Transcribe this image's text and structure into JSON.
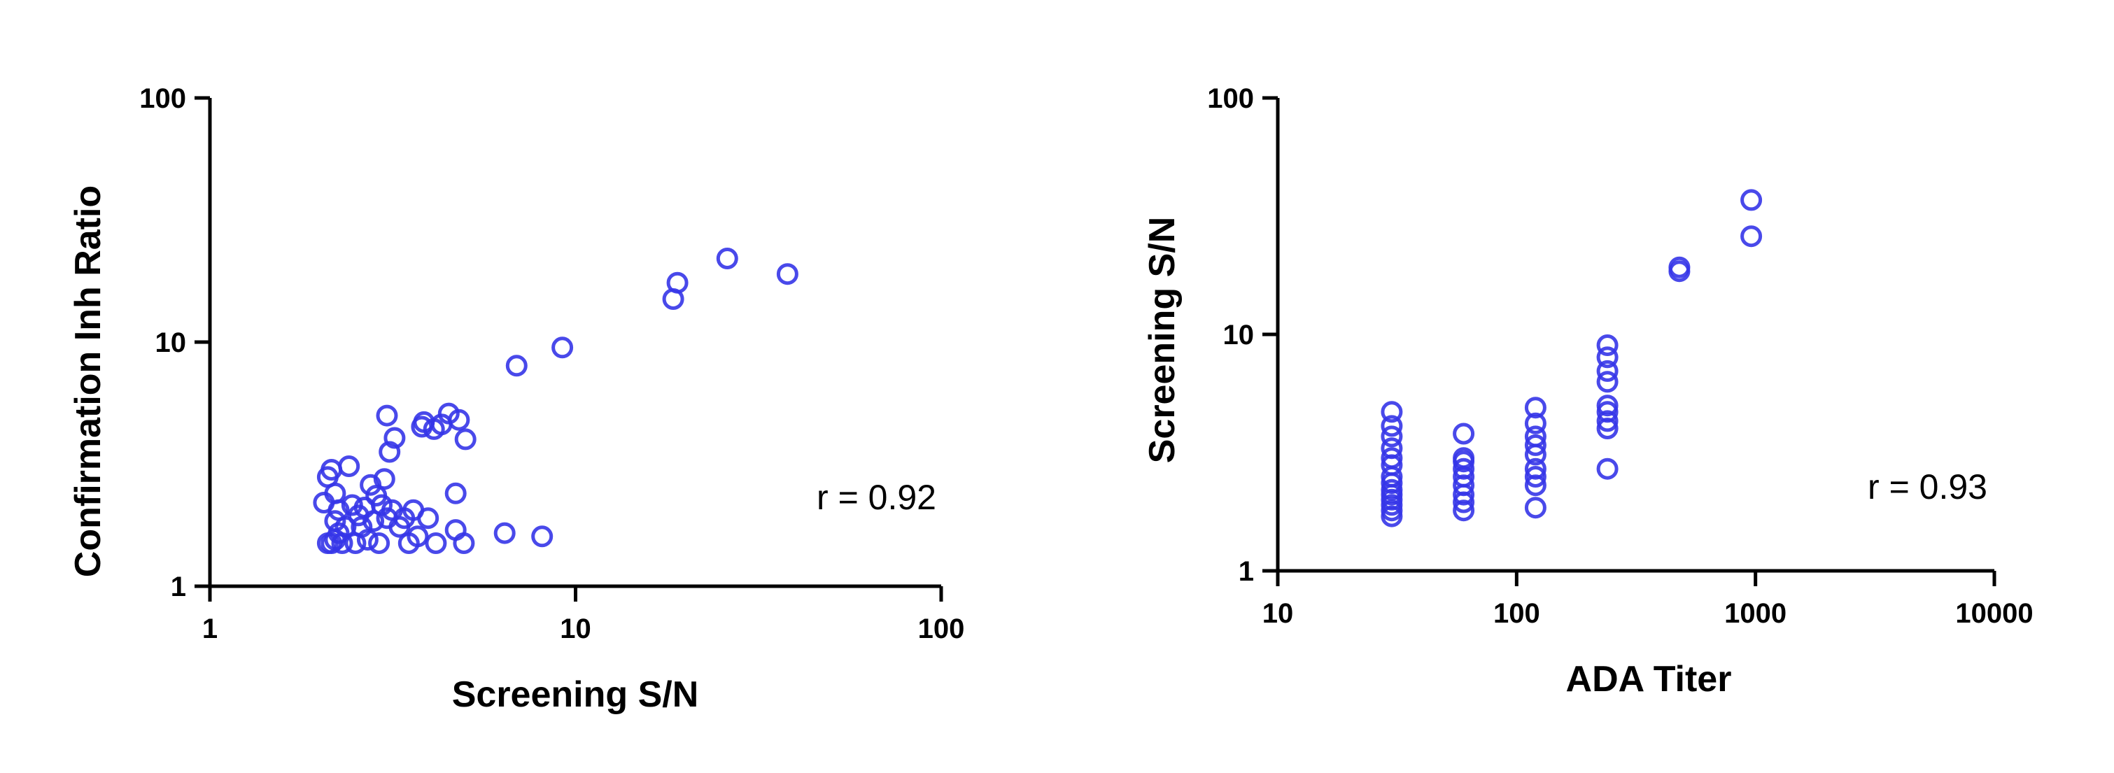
{
  "chart_data": [
    {
      "type": "scatter",
      "xlabel": "Screening S/N",
      "ylabel": "Confirmation Inh Ratio",
      "xscale": "log",
      "yscale": "log",
      "xlim": [
        1,
        100
      ],
      "ylim": [
        1,
        100
      ],
      "xticks": [
        "1",
        "10",
        "100"
      ],
      "yticks": [
        "1",
        "10",
        "100"
      ],
      "grid": false,
      "marker": "open-circle",
      "color": "#3535E8",
      "annotation": "r = 0.92",
      "points": [
        {
          "x": 2.05,
          "y": 2.2
        },
        {
          "x": 2.1,
          "y": 2.8
        },
        {
          "x": 2.15,
          "y": 3.0
        },
        {
          "x": 2.2,
          "y": 2.4
        },
        {
          "x": 2.1,
          "y": 1.5
        },
        {
          "x": 2.15,
          "y": 1.5
        },
        {
          "x": 2.2,
          "y": 1.55
        },
        {
          "x": 2.25,
          "y": 1.65
        },
        {
          "x": 2.3,
          "y": 1.5
        },
        {
          "x": 2.35,
          "y": 1.75
        },
        {
          "x": 2.2,
          "y": 1.85
        },
        {
          "x": 2.25,
          "y": 2.05
        },
        {
          "x": 2.4,
          "y": 3.1
        },
        {
          "x": 2.45,
          "y": 2.15
        },
        {
          "x": 2.5,
          "y": 1.5
        },
        {
          "x": 2.55,
          "y": 1.95
        },
        {
          "x": 2.6,
          "y": 1.75
        },
        {
          "x": 2.65,
          "y": 2.1
        },
        {
          "x": 2.7,
          "y": 1.55
        },
        {
          "x": 2.75,
          "y": 2.6
        },
        {
          "x": 2.8,
          "y": 1.85
        },
        {
          "x": 2.85,
          "y": 2.35
        },
        {
          "x": 2.9,
          "y": 1.5
        },
        {
          "x": 2.95,
          "y": 2.15
        },
        {
          "x": 3.0,
          "y": 2.75
        },
        {
          "x": 3.05,
          "y": 1.9
        },
        {
          "x": 3.05,
          "y": 5.0
        },
        {
          "x": 3.1,
          "y": 3.55
        },
        {
          "x": 3.15,
          "y": 2.05
        },
        {
          "x": 3.2,
          "y": 4.05
        },
        {
          "x": 3.3,
          "y": 1.75
        },
        {
          "x": 3.4,
          "y": 1.9
        },
        {
          "x": 3.5,
          "y": 1.5
        },
        {
          "x": 3.6,
          "y": 2.05
        },
        {
          "x": 3.7,
          "y": 1.6
        },
        {
          "x": 3.8,
          "y": 4.5
        },
        {
          "x": 3.85,
          "y": 4.7
        },
        {
          "x": 3.95,
          "y": 1.9
        },
        {
          "x": 4.1,
          "y": 4.4
        },
        {
          "x": 4.15,
          "y": 1.5
        },
        {
          "x": 4.3,
          "y": 4.6
        },
        {
          "x": 4.5,
          "y": 5.1
        },
        {
          "x": 4.7,
          "y": 2.4
        },
        {
          "x": 4.7,
          "y": 1.7
        },
        {
          "x": 4.8,
          "y": 4.8
        },
        {
          "x": 4.95,
          "y": 1.5
        },
        {
          "x": 5.0,
          "y": 4.0
        },
        {
          "x": 6.4,
          "y": 1.65
        },
        {
          "x": 6.9,
          "y": 8.0
        },
        {
          "x": 8.1,
          "y": 1.6
        },
        {
          "x": 9.2,
          "y": 9.5
        },
        {
          "x": 18.5,
          "y": 15.0
        },
        {
          "x": 19.0,
          "y": 17.5
        },
        {
          "x": 26.0,
          "y": 22.0
        },
        {
          "x": 38.0,
          "y": 19.0
        }
      ]
    },
    {
      "type": "scatter",
      "xlabel": "ADA Titer",
      "ylabel": "Screening S/N",
      "xscale": "log",
      "yscale": "log",
      "xlim": [
        10,
        10000
      ],
      "ylim": [
        1,
        100
      ],
      "xticks": [
        "10",
        "100",
        "1000",
        "10000"
      ],
      "yticks": [
        "1",
        "10",
        "100"
      ],
      "grid": false,
      "marker": "open-circle",
      "color": "#3535E8",
      "annotation": "r = 0.93",
      "points": [
        {
          "x": 30,
          "y": 1.7
        },
        {
          "x": 30,
          "y": 1.8
        },
        {
          "x": 30,
          "y": 1.9
        },
        {
          "x": 30,
          "y": 2.0
        },
        {
          "x": 30,
          "y": 2.1
        },
        {
          "x": 30,
          "y": 2.2
        },
        {
          "x": 30,
          "y": 2.35
        },
        {
          "x": 30,
          "y": 2.5
        },
        {
          "x": 30,
          "y": 2.8
        },
        {
          "x": 30,
          "y": 3.0
        },
        {
          "x": 30,
          "y": 3.3
        },
        {
          "x": 30,
          "y": 3.7
        },
        {
          "x": 30,
          "y": 4.1
        },
        {
          "x": 30,
          "y": 4.7
        },
        {
          "x": 60,
          "y": 1.8
        },
        {
          "x": 60,
          "y": 1.95
        },
        {
          "x": 60,
          "y": 2.1
        },
        {
          "x": 60,
          "y": 2.3
        },
        {
          "x": 60,
          "y": 2.5
        },
        {
          "x": 60,
          "y": 2.7
        },
        {
          "x": 60,
          "y": 2.9
        },
        {
          "x": 60,
          "y": 3.0
        },
        {
          "x": 60,
          "y": 3.8
        },
        {
          "x": 120,
          "y": 1.85
        },
        {
          "x": 120,
          "y": 2.3
        },
        {
          "x": 120,
          "y": 2.5
        },
        {
          "x": 120,
          "y": 2.7
        },
        {
          "x": 120,
          "y": 3.1
        },
        {
          "x": 120,
          "y": 3.4
        },
        {
          "x": 120,
          "y": 3.7
        },
        {
          "x": 120,
          "y": 4.2
        },
        {
          "x": 120,
          "y": 4.9
        },
        {
          "x": 240,
          "y": 2.7
        },
        {
          "x": 240,
          "y": 4.0
        },
        {
          "x": 240,
          "y": 4.3
        },
        {
          "x": 240,
          "y": 4.7
        },
        {
          "x": 240,
          "y": 5.0
        },
        {
          "x": 240,
          "y": 6.3
        },
        {
          "x": 240,
          "y": 7.0
        },
        {
          "x": 240,
          "y": 8.0
        },
        {
          "x": 240,
          "y": 9.0
        },
        {
          "x": 480,
          "y": 18.5
        },
        {
          "x": 480,
          "y": 19.2
        },
        {
          "x": 960,
          "y": 26.0
        },
        {
          "x": 960,
          "y": 37.0
        }
      ]
    }
  ]
}
